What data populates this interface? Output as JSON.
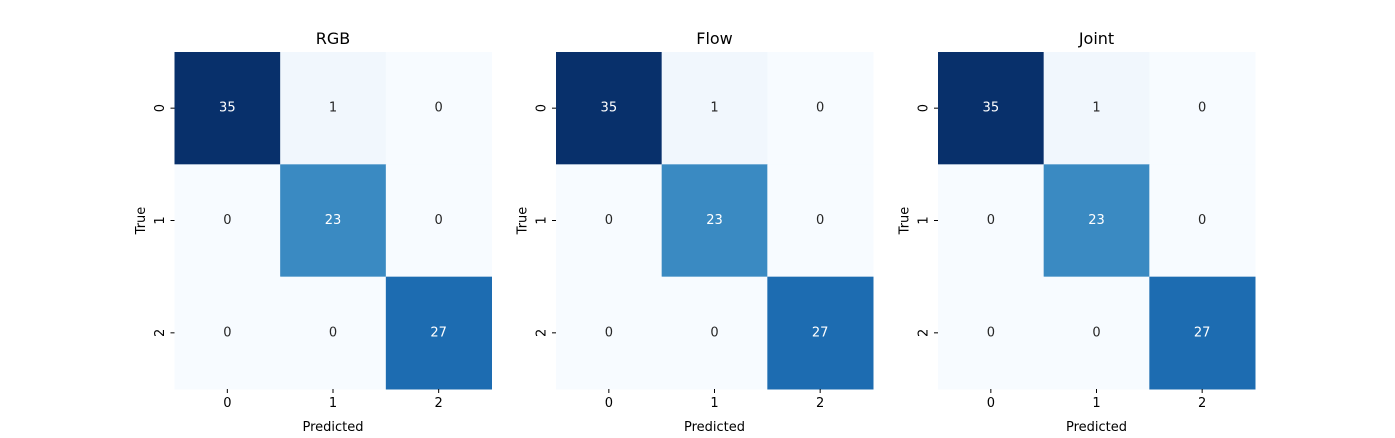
{
  "chart_data": [
    {
      "type": "heatmap",
      "title": "RGB",
      "xlabel": "Predicted",
      "ylabel": "True",
      "x_categories": [
        "0",
        "1",
        "2"
      ],
      "y_categories": [
        "0",
        "1",
        "2"
      ],
      "values": [
        [
          35,
          1,
          0
        ],
        [
          0,
          23,
          0
        ],
        [
          0,
          0,
          27
        ]
      ],
      "colormap": "Blues",
      "value_range": [
        0,
        35
      ],
      "colorbar": false,
      "grid": false
    },
    {
      "type": "heatmap",
      "title": "Flow",
      "xlabel": "Predicted",
      "ylabel": "True",
      "x_categories": [
        "0",
        "1",
        "2"
      ],
      "y_categories": [
        "0",
        "1",
        "2"
      ],
      "values": [
        [
          35,
          1,
          0
        ],
        [
          0,
          23,
          0
        ],
        [
          0,
          0,
          27
        ]
      ],
      "colormap": "Blues",
      "value_range": [
        0,
        35
      ],
      "colorbar": false,
      "grid": false
    },
    {
      "type": "heatmap",
      "title": "Joint",
      "xlabel": "Predicted",
      "ylabel": "True",
      "x_categories": [
        "0",
        "1",
        "2"
      ],
      "y_categories": [
        "0",
        "1",
        "2"
      ],
      "values": [
        [
          35,
          1,
          0
        ],
        [
          0,
          23,
          0
        ],
        [
          0,
          0,
          27
        ]
      ],
      "colormap": "Blues",
      "value_range": [
        0,
        35
      ],
      "colorbar": false,
      "grid": false
    }
  ],
  "colors": {
    "colormap_stops": [
      "#f7fbff",
      "#deebf7",
      "#c6dbef",
      "#9ecae1",
      "#6baed6",
      "#4292c6",
      "#2171b5",
      "#08519c",
      "#08306b"
    ],
    "label_dark": "#262626",
    "label_light": "#ffffff"
  }
}
